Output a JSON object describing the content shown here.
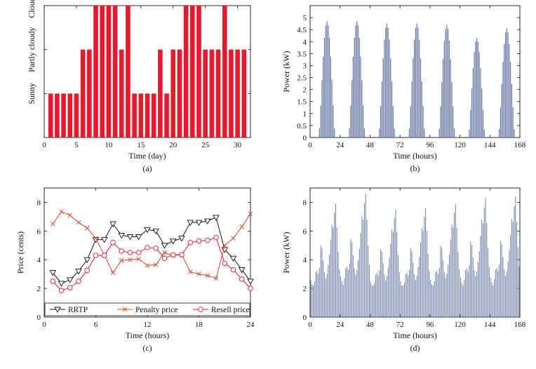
{
  "chart_data": [
    {
      "id": "a",
      "type": "bar",
      "caption": "(a)",
      "xlabel": "Time (day)",
      "ylabel": "",
      "xlim": [
        0,
        32
      ],
      "ylim": [
        0,
        3
      ],
      "x": [
        1,
        2,
        3,
        4,
        5,
        6,
        7,
        8,
        9,
        10,
        11,
        12,
        13,
        14,
        15,
        16,
        17,
        18,
        19,
        20,
        21,
        22,
        23,
        24,
        25,
        26,
        27,
        28,
        29,
        30,
        31
      ],
      "values": [
        1,
        1,
        1,
        1,
        1,
        2,
        2,
        3,
        3,
        3,
        3,
        2,
        3,
        1,
        1,
        1,
        1,
        2,
        1,
        2,
        2,
        3,
        3,
        3,
        2,
        2,
        2,
        3,
        2,
        2,
        2
      ],
      "xticks": [
        0,
        5,
        10,
        15,
        20,
        25,
        30
      ],
      "ytick_labels": [
        {
          "value": 1,
          "label": "Sunny"
        },
        {
          "value": 2,
          "label": "Partly cloudy"
        },
        {
          "value": 3,
          "label": "Cloudy"
        }
      ],
      "color": "#e8192c"
    },
    {
      "id": "b",
      "type": "bar",
      "caption": "(b)",
      "xlabel": "Time (hours)",
      "ylabel": "Power (kW)",
      "xlim": [
        0,
        168
      ],
      "ylim": [
        0,
        5.5
      ],
      "xticks": [
        0,
        24,
        48,
        72,
        96,
        120,
        144,
        168
      ],
      "yticks": [
        0,
        0.5,
        1,
        1.5,
        2,
        2.5,
        3,
        3.5,
        4,
        4.5,
        5
      ],
      "daily_peak_kw": [
        4.85,
        4.85,
        4.75,
        4.75,
        4.7,
        4.15,
        4.55
      ],
      "daylight_hours": [
        7,
        8,
        9,
        10,
        11,
        12,
        13,
        14,
        15,
        16,
        17,
        18,
        19
      ],
      "color": "#6e7fa6"
    },
    {
      "id": "c",
      "type": "line",
      "caption": "(c)",
      "xlabel": "Time (hours)",
      "ylabel": "Price (cents)",
      "xlim": [
        0,
        24
      ],
      "ylim": [
        0,
        9
      ],
      "xticks": [
        0,
        6,
        12,
        18,
        24
      ],
      "yticks": [
        0,
        2,
        4,
        6,
        8
      ],
      "x": [
        1,
        2,
        3,
        4,
        5,
        6,
        7,
        8,
        9,
        10,
        11,
        12,
        13,
        14,
        15,
        16,
        17,
        18,
        19,
        20,
        21,
        22,
        23,
        24
      ],
      "series": [
        {
          "name": "RRTP",
          "color": "#111111",
          "marker": "triangle-down",
          "values": [
            3.1,
            2.35,
            2.6,
            3.2,
            4.0,
            5.4,
            5.4,
            6.5,
            5.7,
            5.6,
            5.6,
            6.1,
            6.0,
            5.0,
            5.3,
            5.5,
            6.6,
            6.6,
            6.7,
            6.95,
            4.7,
            4.1,
            3.3,
            2.5
          ]
        },
        {
          "name": "Penalty price",
          "color": "#d9482b",
          "marker": "x",
          "values": [
            6.5,
            7.35,
            7.1,
            6.6,
            6.2,
            5.5,
            4.3,
            3.1,
            3.95,
            4.0,
            4.05,
            3.6,
            3.65,
            4.5,
            4.3,
            4.35,
            3.15,
            3.0,
            2.9,
            2.7,
            5.0,
            5.5,
            6.3,
            7.2
          ]
        },
        {
          "name": "Resell price",
          "color": "#e8192c",
          "marker": "circle",
          "values": [
            2.5,
            1.85,
            2.05,
            2.5,
            3.25,
            4.3,
            4.3,
            5.2,
            4.6,
            4.5,
            4.5,
            4.85,
            4.8,
            4.1,
            4.35,
            4.35,
            5.2,
            5.3,
            5.35,
            5.55,
            3.75,
            3.3,
            2.65,
            2.0
          ]
        }
      ],
      "legend_location": "bottom"
    },
    {
      "id": "d",
      "type": "bar",
      "caption": "(d)",
      "xlabel": "Time (hours)",
      "ylabel": "Power (kW)",
      "xlim": [
        0,
        168
      ],
      "ylim": [
        0,
        9
      ],
      "xticks": [
        0,
        24,
        48,
        72,
        96,
        120,
        144,
        168
      ],
      "yticks": [
        0,
        2,
        4,
        6,
        8
      ],
      "daily_peak_kw": [
        7.9,
        8.6,
        7.5,
        7.6,
        7.9,
        8.3,
        8.4
      ],
      "color": "#6e7fa6"
    }
  ]
}
